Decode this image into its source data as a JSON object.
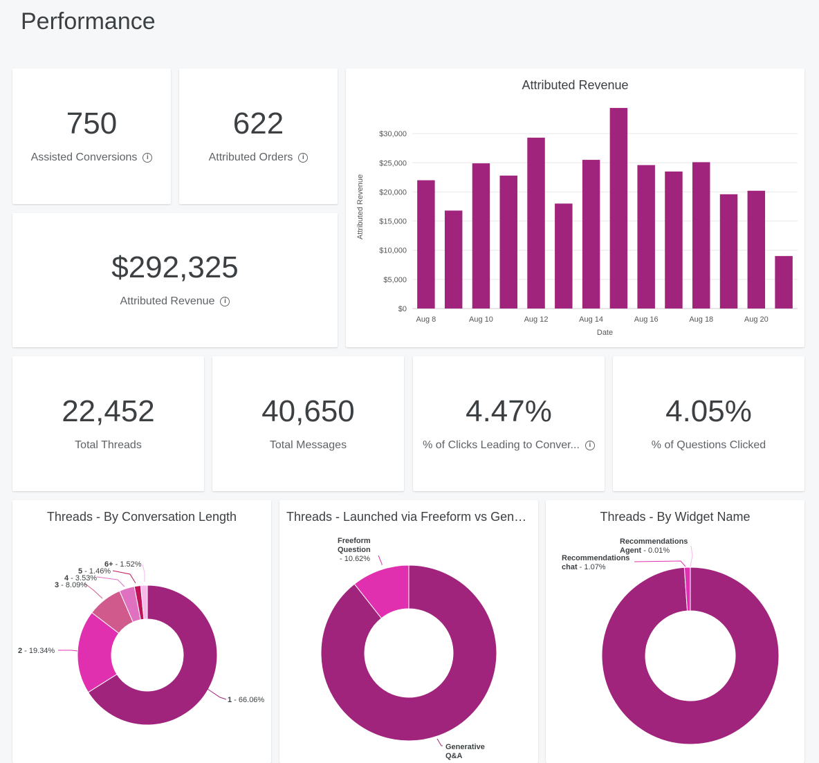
{
  "page_title": "Performance",
  "kpis": {
    "assisted_conversions": {
      "value": "750",
      "label": "Assisted Conversions"
    },
    "attributed_orders": {
      "value": "622",
      "label": "Attributed Orders"
    },
    "attributed_revenue": {
      "value": "$292,325",
      "label": "Attributed Revenue"
    },
    "total_threads": {
      "value": "22,452",
      "label": "Total Threads"
    },
    "total_messages": {
      "value": "40,650",
      "label": "Total Messages"
    },
    "clicks_conversion": {
      "value": "4.47%",
      "label": "% of Clicks Leading to Conver..."
    },
    "questions_clicked": {
      "value": "4.05%",
      "label": "% of Questions Clicked"
    }
  },
  "colors": {
    "primary": "#a0237c"
  },
  "chart_data": [
    {
      "type": "bar",
      "title": "Attributed Revenue",
      "xlabel": "Date",
      "ylabel": "Attributed Revenue",
      "categories": [
        "Aug 8",
        "Aug 9",
        "Aug 10",
        "Aug 11",
        "Aug 12",
        "Aug 13",
        "Aug 14",
        "Aug 15",
        "Aug 16",
        "Aug 17",
        "Aug 18",
        "Aug 19",
        "Aug 20",
        "Aug 21"
      ],
      "tick_labels_x": [
        "Aug 8",
        "Aug 10",
        "Aug 12",
        "Aug 14",
        "Aug 16",
        "Aug 18",
        "Aug 20"
      ],
      "values": [
        22000,
        16800,
        24900,
        22800,
        29300,
        18000,
        25500,
        34400,
        24600,
        23500,
        25100,
        19600,
        20200,
        9000
      ],
      "yticks": [
        "$0",
        "$5,000",
        "$10,000",
        "$15,000",
        "$20,000",
        "$25,000",
        "$30,000"
      ],
      "ylim": [
        0,
        35000
      ],
      "grid": true,
      "color": "#a0237c"
    },
    {
      "type": "pie",
      "title": "Threads - By Conversation Length",
      "donut": true,
      "slices": [
        {
          "name": "1",
          "pct": "66.06%",
          "value": 66.06,
          "color": "#a0237c"
        },
        {
          "name": "2",
          "pct": "19.34%",
          "value": 19.34,
          "color": "#e030b0"
        },
        {
          "name": "3",
          "pct": "8.09%",
          "value": 8.09,
          "color": "#d05a8c"
        },
        {
          "name": "4",
          "pct": "3.53%",
          "value": 3.53,
          "color": "#e070c0"
        },
        {
          "name": "5",
          "pct": "1.46%",
          "value": 1.46,
          "color": "#c0145a"
        },
        {
          "name": "6+",
          "pct": "1.52%",
          "value": 1.52,
          "color": "#f7b8ec"
        }
      ]
    },
    {
      "type": "pie",
      "title": "Threads - Launched via Freeform vs Gener...",
      "donut": true,
      "slices": [
        {
          "name": "Generative Q&A",
          "pct": "",
          "value": 89.38,
          "color": "#a0237c"
        },
        {
          "name": "Freeform Question",
          "pct": "10.62%",
          "value": 10.62,
          "color": "#e030b0"
        }
      ]
    },
    {
      "type": "pie",
      "title": "Threads - By Widget Name",
      "donut": true,
      "slices": [
        {
          "name": "",
          "pct": "",
          "value": 98.92,
          "color": "#a0237c"
        },
        {
          "name": "Recommendations chat",
          "pct": "1.07%",
          "value": 1.07,
          "color": "#e030b0"
        },
        {
          "name": "Recommendations Agent",
          "pct": "0.01%",
          "value": 0.01,
          "color": "#f7b8ec"
        }
      ]
    }
  ]
}
